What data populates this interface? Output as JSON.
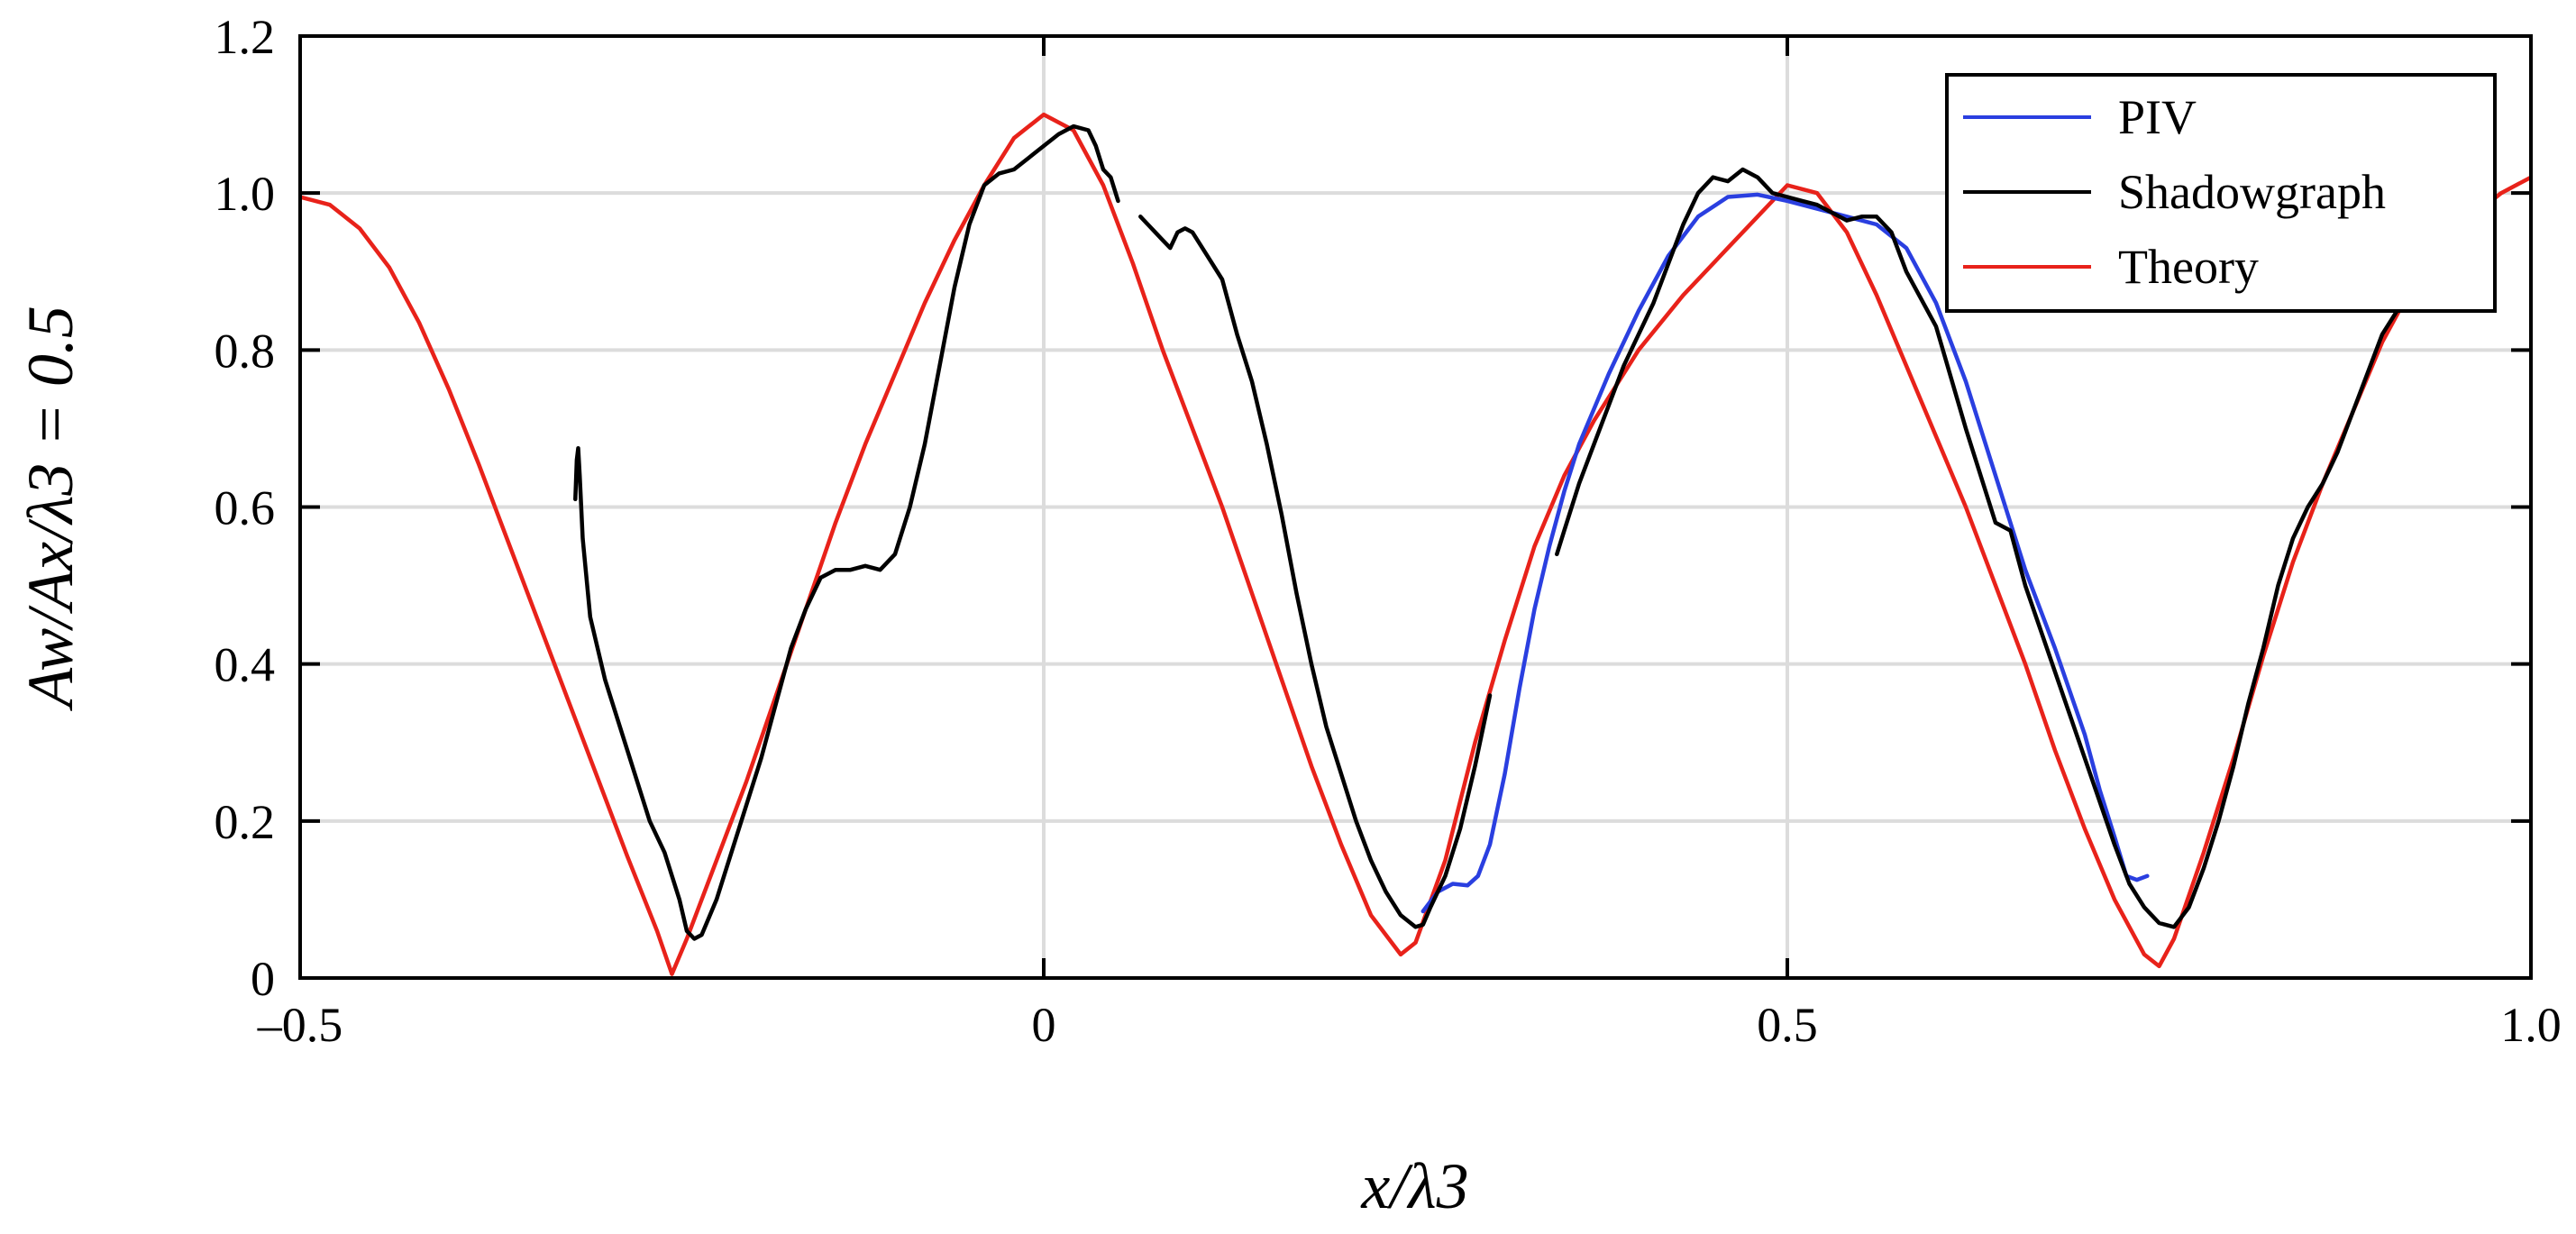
{
  "chart_data": {
    "type": "line",
    "xlabel": "x/λ3",
    "ylabel": "Aw/Ax/λ3 = 0.5",
    "xlim": [
      -0.5,
      1.0
    ],
    "ylim": [
      0,
      1.2
    ],
    "xticks": [
      -0.5,
      0,
      0.5,
      1.0
    ],
    "xtick_labels": [
      "–0.5",
      "0",
      "0.5",
      "1.0"
    ],
    "yticks": [
      0,
      0.2,
      0.4,
      0.6,
      0.8,
      1.0,
      1.2
    ],
    "ytick_labels": [
      "0",
      "0.2",
      "0.4",
      "0.6",
      "0.8",
      "1.0",
      "1.2"
    ],
    "grid": true,
    "legend_position": "top-right",
    "series": [
      {
        "name": "PIV",
        "color": "#2a3fe0",
        "segments": [
          [
            [
              0.255,
              0.085
            ],
            [
              0.265,
              0.11
            ],
            [
              0.275,
              0.12
            ],
            [
              0.285,
              0.118
            ],
            [
              0.292,
              0.13
            ],
            [
              0.3,
              0.17
            ],
            [
              0.31,
              0.26
            ],
            [
              0.32,
              0.37
            ],
            [
              0.33,
              0.47
            ],
            [
              0.34,
              0.55
            ],
            [
              0.35,
              0.62
            ],
            [
              0.36,
              0.68
            ],
            [
              0.38,
              0.77
            ],
            [
              0.4,
              0.85
            ],
            [
              0.42,
              0.92
            ],
            [
              0.44,
              0.97
            ],
            [
              0.46,
              0.995
            ],
            [
              0.48,
              0.998
            ],
            [
              0.5,
              0.99
            ],
            [
              0.52,
              0.98
            ],
            [
              0.54,
              0.97
            ],
            [
              0.56,
              0.96
            ],
            [
              0.58,
              0.93
            ],
            [
              0.6,
              0.86
            ],
            [
              0.62,
              0.76
            ],
            [
              0.64,
              0.64
            ],
            [
              0.66,
              0.52
            ],
            [
              0.68,
              0.42
            ],
            [
              0.7,
              0.31
            ],
            [
              0.71,
              0.24
            ],
            [
              0.72,
              0.18
            ],
            [
              0.728,
              0.13
            ],
            [
              0.735,
              0.125
            ],
            [
              0.742,
              0.13
            ]
          ]
        ]
      },
      {
        "name": "Shadowgraph",
        "color": "#000000",
        "segments": [
          [
            [
              -0.315,
              0.61
            ],
            [
              -0.314,
              0.66
            ],
            [
              -0.313,
              0.675
            ],
            [
              -0.312,
              0.64
            ],
            [
              -0.31,
              0.56
            ],
            [
              -0.305,
              0.46
            ],
            [
              -0.295,
              0.38
            ],
            [
              -0.285,
              0.32
            ],
            [
              -0.275,
              0.26
            ],
            [
              -0.265,
              0.2
            ],
            [
              -0.255,
              0.16
            ],
            [
              -0.245,
              0.1
            ],
            [
              -0.24,
              0.06
            ],
            [
              -0.235,
              0.05
            ],
            [
              -0.23,
              0.055
            ],
            [
              -0.22,
              0.1
            ],
            [
              -0.21,
              0.16
            ],
            [
              -0.2,
              0.22
            ],
            [
              -0.19,
              0.28
            ],
            [
              -0.18,
              0.35
            ],
            [
              -0.17,
              0.42
            ],
            [
              -0.16,
              0.47
            ],
            [
              -0.15,
              0.51
            ],
            [
              -0.14,
              0.52
            ],
            [
              -0.13,
              0.52
            ],
            [
              -0.12,
              0.525
            ],
            [
              -0.11,
              0.52
            ],
            [
              -0.1,
              0.54
            ],
            [
              -0.09,
              0.6
            ],
            [
              -0.08,
              0.68
            ],
            [
              -0.07,
              0.78
            ],
            [
              -0.06,
              0.88
            ],
            [
              -0.05,
              0.96
            ],
            [
              -0.04,
              1.01
            ],
            [
              -0.03,
              1.025
            ],
            [
              -0.02,
              1.03
            ],
            [
              -0.01,
              1.045
            ],
            [
              0.0,
              1.06
            ],
            [
              0.01,
              1.075
            ],
            [
              0.02,
              1.085
            ],
            [
              0.03,
              1.08
            ],
            [
              0.035,
              1.06
            ],
            [
              0.04,
              1.03
            ],
            [
              0.045,
              1.02
            ],
            [
              0.05,
              0.99
            ]
          ],
          [
            [
              0.065,
              0.97
            ],
            [
              0.07,
              0.96
            ],
            [
              0.08,
              0.94
            ],
            [
              0.085,
              0.93
            ],
            [
              0.09,
              0.95
            ],
            [
              0.095,
              0.955
            ],
            [
              0.1,
              0.95
            ],
            [
              0.11,
              0.92
            ],
            [
              0.12,
              0.89
            ],
            [
              0.13,
              0.82
            ],
            [
              0.14,
              0.76
            ],
            [
              0.15,
              0.68
            ],
            [
              0.16,
              0.59
            ],
            [
              0.17,
              0.49
            ],
            [
              0.18,
              0.4
            ],
            [
              0.19,
              0.32
            ],
            [
              0.2,
              0.26
            ],
            [
              0.21,
              0.2
            ],
            [
              0.22,
              0.15
            ],
            [
              0.23,
              0.11
            ],
            [
              0.24,
              0.08
            ],
            [
              0.25,
              0.065
            ],
            [
              0.255,
              0.068
            ],
            [
              0.26,
              0.09
            ],
            [
              0.27,
              0.13
            ],
            [
              0.28,
              0.19
            ],
            [
              0.29,
              0.27
            ],
            [
              0.3,
              0.36
            ]
          ],
          [
            [
              0.345,
              0.54
            ],
            [
              0.35,
              0.57
            ],
            [
              0.36,
              0.63
            ],
            [
              0.37,
              0.68
            ],
            [
              0.38,
              0.73
            ],
            [
              0.39,
              0.78
            ],
            [
              0.4,
              0.82
            ],
            [
              0.41,
              0.86
            ],
            [
              0.42,
              0.91
            ],
            [
              0.43,
              0.96
            ],
            [
              0.44,
              1.0
            ],
            [
              0.45,
              1.02
            ],
            [
              0.46,
              1.015
            ],
            [
              0.47,
              1.03
            ],
            [
              0.48,
              1.02
            ],
            [
              0.49,
              1.0
            ],
            [
              0.5,
              0.995
            ],
            [
              0.51,
              0.99
            ],
            [
              0.52,
              0.985
            ],
            [
              0.53,
              0.975
            ],
            [
              0.54,
              0.965
            ],
            [
              0.55,
              0.97
            ],
            [
              0.56,
              0.97
            ],
            [
              0.57,
              0.95
            ],
            [
              0.58,
              0.9
            ],
            [
              0.6,
              0.83
            ],
            [
              0.62,
              0.7
            ],
            [
              0.64,
              0.58
            ],
            [
              0.65,
              0.57
            ],
            [
              0.66,
              0.5
            ],
            [
              0.68,
              0.39
            ],
            [
              0.7,
              0.28
            ],
            [
              0.72,
              0.17
            ],
            [
              0.73,
              0.12
            ],
            [
              0.74,
              0.09
            ],
            [
              0.75,
              0.07
            ],
            [
              0.76,
              0.065
            ],
            [
              0.77,
              0.09
            ],
            [
              0.78,
              0.14
            ],
            [
              0.79,
              0.2
            ],
            [
              0.8,
              0.27
            ],
            [
              0.81,
              0.35
            ],
            [
              0.82,
              0.42
            ],
            [
              0.83,
              0.5
            ],
            [
              0.84,
              0.56
            ],
            [
              0.85,
              0.6
            ],
            [
              0.86,
              0.63
            ],
            [
              0.87,
              0.67
            ],
            [
              0.88,
              0.72
            ],
            [
              0.89,
              0.77
            ],
            [
              0.9,
              0.82
            ],
            [
              0.91,
              0.85
            ],
            [
              0.92,
              0.87
            ],
            [
              0.93,
              0.88
            ]
          ]
        ]
      },
      {
        "name": "Theory",
        "color": "#e8221a",
        "segments": [
          [
            [
              -0.5,
              0.995
            ],
            [
              -0.48,
              0.985
            ],
            [
              -0.46,
              0.955
            ],
            [
              -0.44,
              0.905
            ],
            [
              -0.42,
              0.835
            ],
            [
              -0.4,
              0.75
            ],
            [
              -0.38,
              0.655
            ],
            [
              -0.36,
              0.555
            ],
            [
              -0.34,
              0.455
            ],
            [
              -0.32,
              0.355
            ],
            [
              -0.3,
              0.255
            ],
            [
              -0.28,
              0.155
            ],
            [
              -0.26,
              0.06
            ],
            [
              -0.25,
              0.005
            ],
            [
              -0.24,
              0.05
            ],
            [
              -0.22,
              0.15
            ],
            [
              -0.2,
              0.25
            ],
            [
              -0.18,
              0.36
            ],
            [
              -0.16,
              0.47
            ],
            [
              -0.14,
              0.58
            ],
            [
              -0.12,
              0.68
            ],
            [
              -0.1,
              0.77
            ],
            [
              -0.08,
              0.86
            ],
            [
              -0.06,
              0.94
            ],
            [
              -0.04,
              1.01
            ],
            [
              -0.02,
              1.07
            ],
            [
              0.0,
              1.1
            ],
            [
              0.02,
              1.08
            ],
            [
              0.04,
              1.01
            ],
            [
              0.06,
              0.91
            ],
            [
              0.08,
              0.8
            ],
            [
              0.1,
              0.7
            ],
            [
              0.12,
              0.6
            ],
            [
              0.14,
              0.49
            ],
            [
              0.16,
              0.38
            ],
            [
              0.18,
              0.27
            ],
            [
              0.2,
              0.17
            ],
            [
              0.22,
              0.08
            ],
            [
              0.24,
              0.03
            ],
            [
              0.25,
              0.045
            ],
            [
              0.27,
              0.15
            ],
            [
              0.29,
              0.3
            ],
            [
              0.31,
              0.43
            ],
            [
              0.33,
              0.55
            ],
            [
              0.35,
              0.64
            ],
            [
              0.37,
              0.71
            ],
            [
              0.4,
              0.8
            ],
            [
              0.43,
              0.87
            ],
            [
              0.46,
              0.93
            ],
            [
              0.48,
              0.97
            ],
            [
              0.5,
              1.01
            ],
            [
              0.52,
              1.0
            ],
            [
              0.54,
              0.95
            ],
            [
              0.56,
              0.87
            ],
            [
              0.58,
              0.78
            ],
            [
              0.6,
              0.69
            ],
            [
              0.62,
              0.6
            ],
            [
              0.64,
              0.5
            ],
            [
              0.66,
              0.4
            ],
            [
              0.68,
              0.29
            ],
            [
              0.7,
              0.19
            ],
            [
              0.72,
              0.1
            ],
            [
              0.74,
              0.03
            ],
            [
              0.75,
              0.015
            ],
            [
              0.76,
              0.05
            ],
            [
              0.78,
              0.16
            ],
            [
              0.8,
              0.28
            ],
            [
              0.82,
              0.41
            ],
            [
              0.84,
              0.53
            ],
            [
              0.86,
              0.63
            ],
            [
              0.88,
              0.72
            ],
            [
              0.9,
              0.81
            ],
            [
              0.92,
              0.88
            ],
            [
              0.94,
              0.93
            ],
            [
              0.96,
              0.97
            ],
            [
              0.98,
              1.0
            ],
            [
              1.0,
              1.02
            ]
          ]
        ]
      }
    ]
  }
}
